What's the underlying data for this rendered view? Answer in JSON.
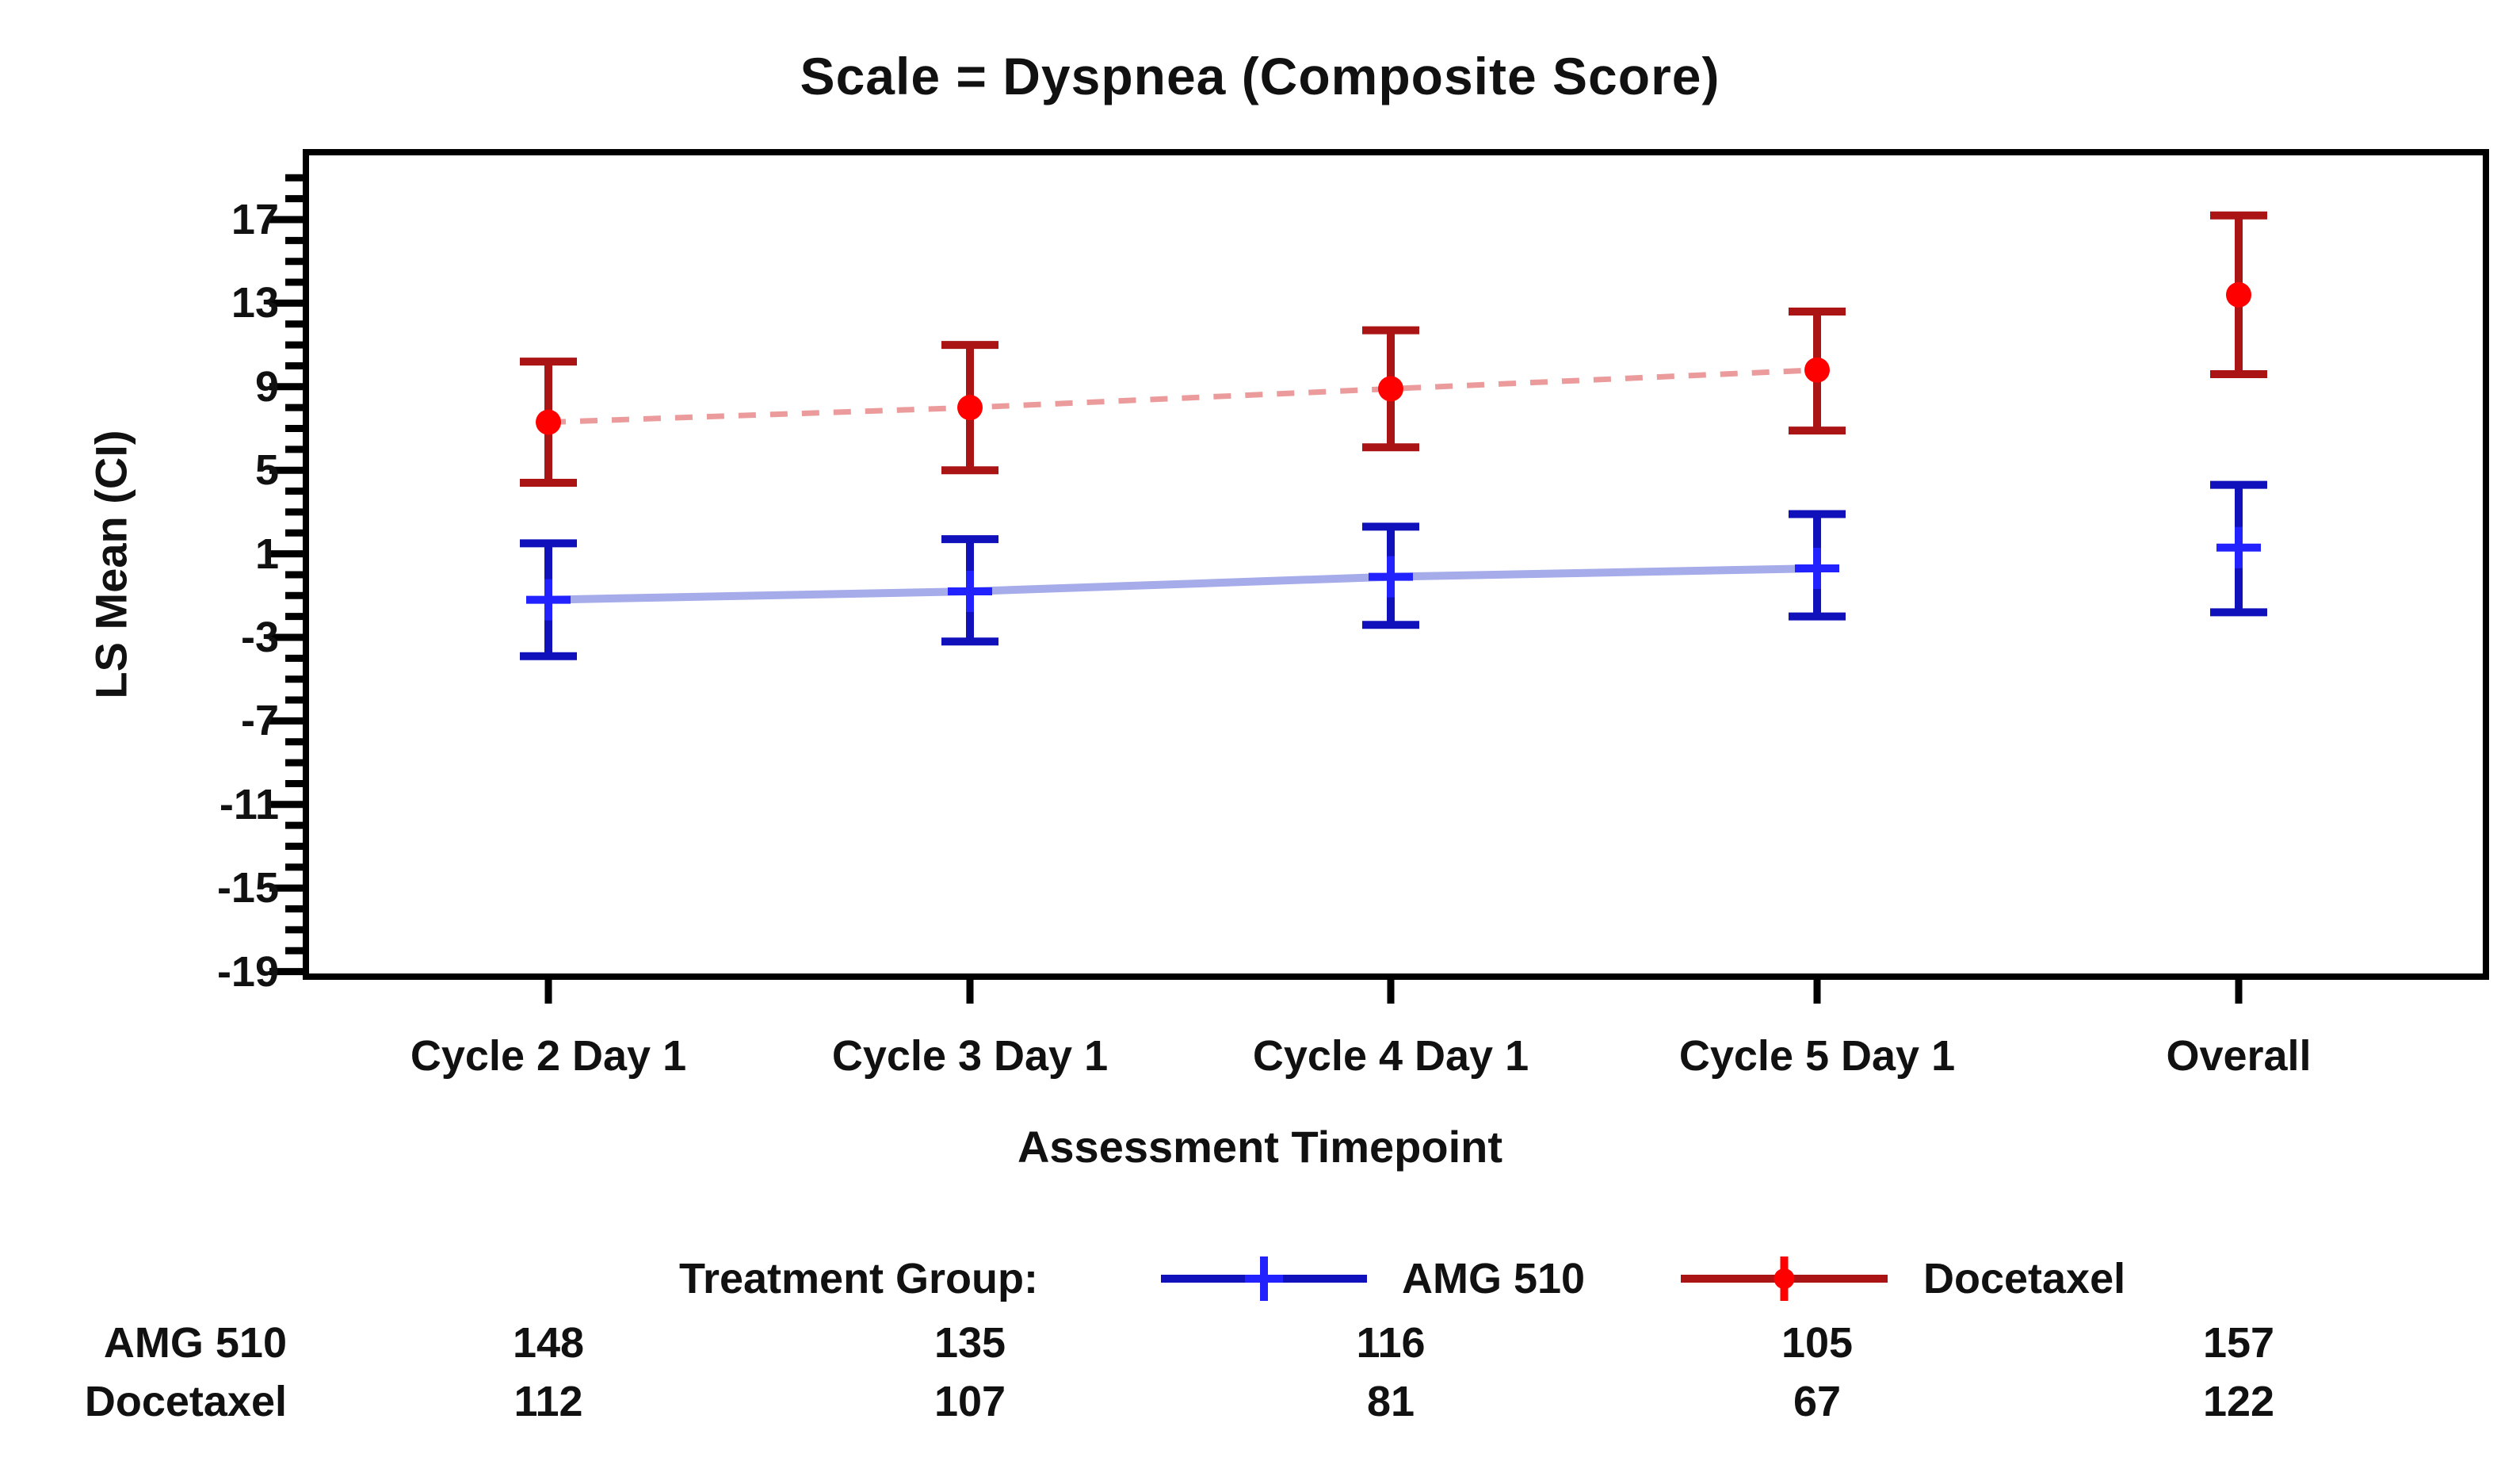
{
  "chart_data": {
    "type": "line",
    "title": "Scale = Dyspnea (Composite Score)",
    "xlabel": "Assessment Timepoint",
    "ylabel": "LS Mean (CI)",
    "categories": [
      "Cycle 2 Day 1",
      "Cycle 3 Day 1",
      "Cycle 4 Day 1",
      "Cycle 5 Day 1",
      "Overall"
    ],
    "y_axis": {
      "min": -19,
      "max": 20,
      "major_tick_step": 4,
      "minor_tick_step": 1,
      "major_ticks": [
        17,
        13,
        9,
        5,
        1,
        -3,
        -7,
        -11,
        -15,
        -19
      ]
    },
    "legend": {
      "label": "Treatment Group:",
      "entries": [
        {
          "name": "AMG 510",
          "color": "#0000bb"
        },
        {
          "name": "Docetaxel",
          "color": "#cc1111"
        }
      ]
    },
    "series": [
      {
        "name": "AMG 510",
        "marker": "plus",
        "line_style": "solid",
        "bar_color": "#1111bb",
        "marker_color": "#2222ff",
        "connector_color": "#a6abe9",
        "means": [
          -1.2,
          -0.8,
          -0.1,
          0.3,
          1.3
        ],
        "ci_low": [
          -3.9,
          -3.2,
          -2.4,
          -2.0,
          -1.8
        ],
        "ci_high": [
          1.5,
          1.7,
          2.3,
          2.9,
          4.3
        ],
        "connect_overall": false
      },
      {
        "name": "Docetaxel",
        "marker": "dot",
        "line_style": "dashed",
        "bar_color": "#aa1414",
        "marker_color": "#ff0000",
        "connector_color": "#eb9b9b",
        "means": [
          7.3,
          8.0,
          8.9,
          9.8,
          13.4
        ],
        "ci_low": [
          4.4,
          5.0,
          6.1,
          6.9,
          9.6
        ],
        "ci_high": [
          10.2,
          11.0,
          11.7,
          12.6,
          17.2
        ],
        "connect_overall": false
      }
    ]
  },
  "counts_table": {
    "rows": [
      {
        "label": "AMG 510",
        "values": [
          "148",
          "135",
          "116",
          "105",
          "157"
        ]
      },
      {
        "label": "Docetaxel",
        "values": [
          "112",
          "107",
          "81",
          "67",
          "122"
        ]
      }
    ]
  }
}
